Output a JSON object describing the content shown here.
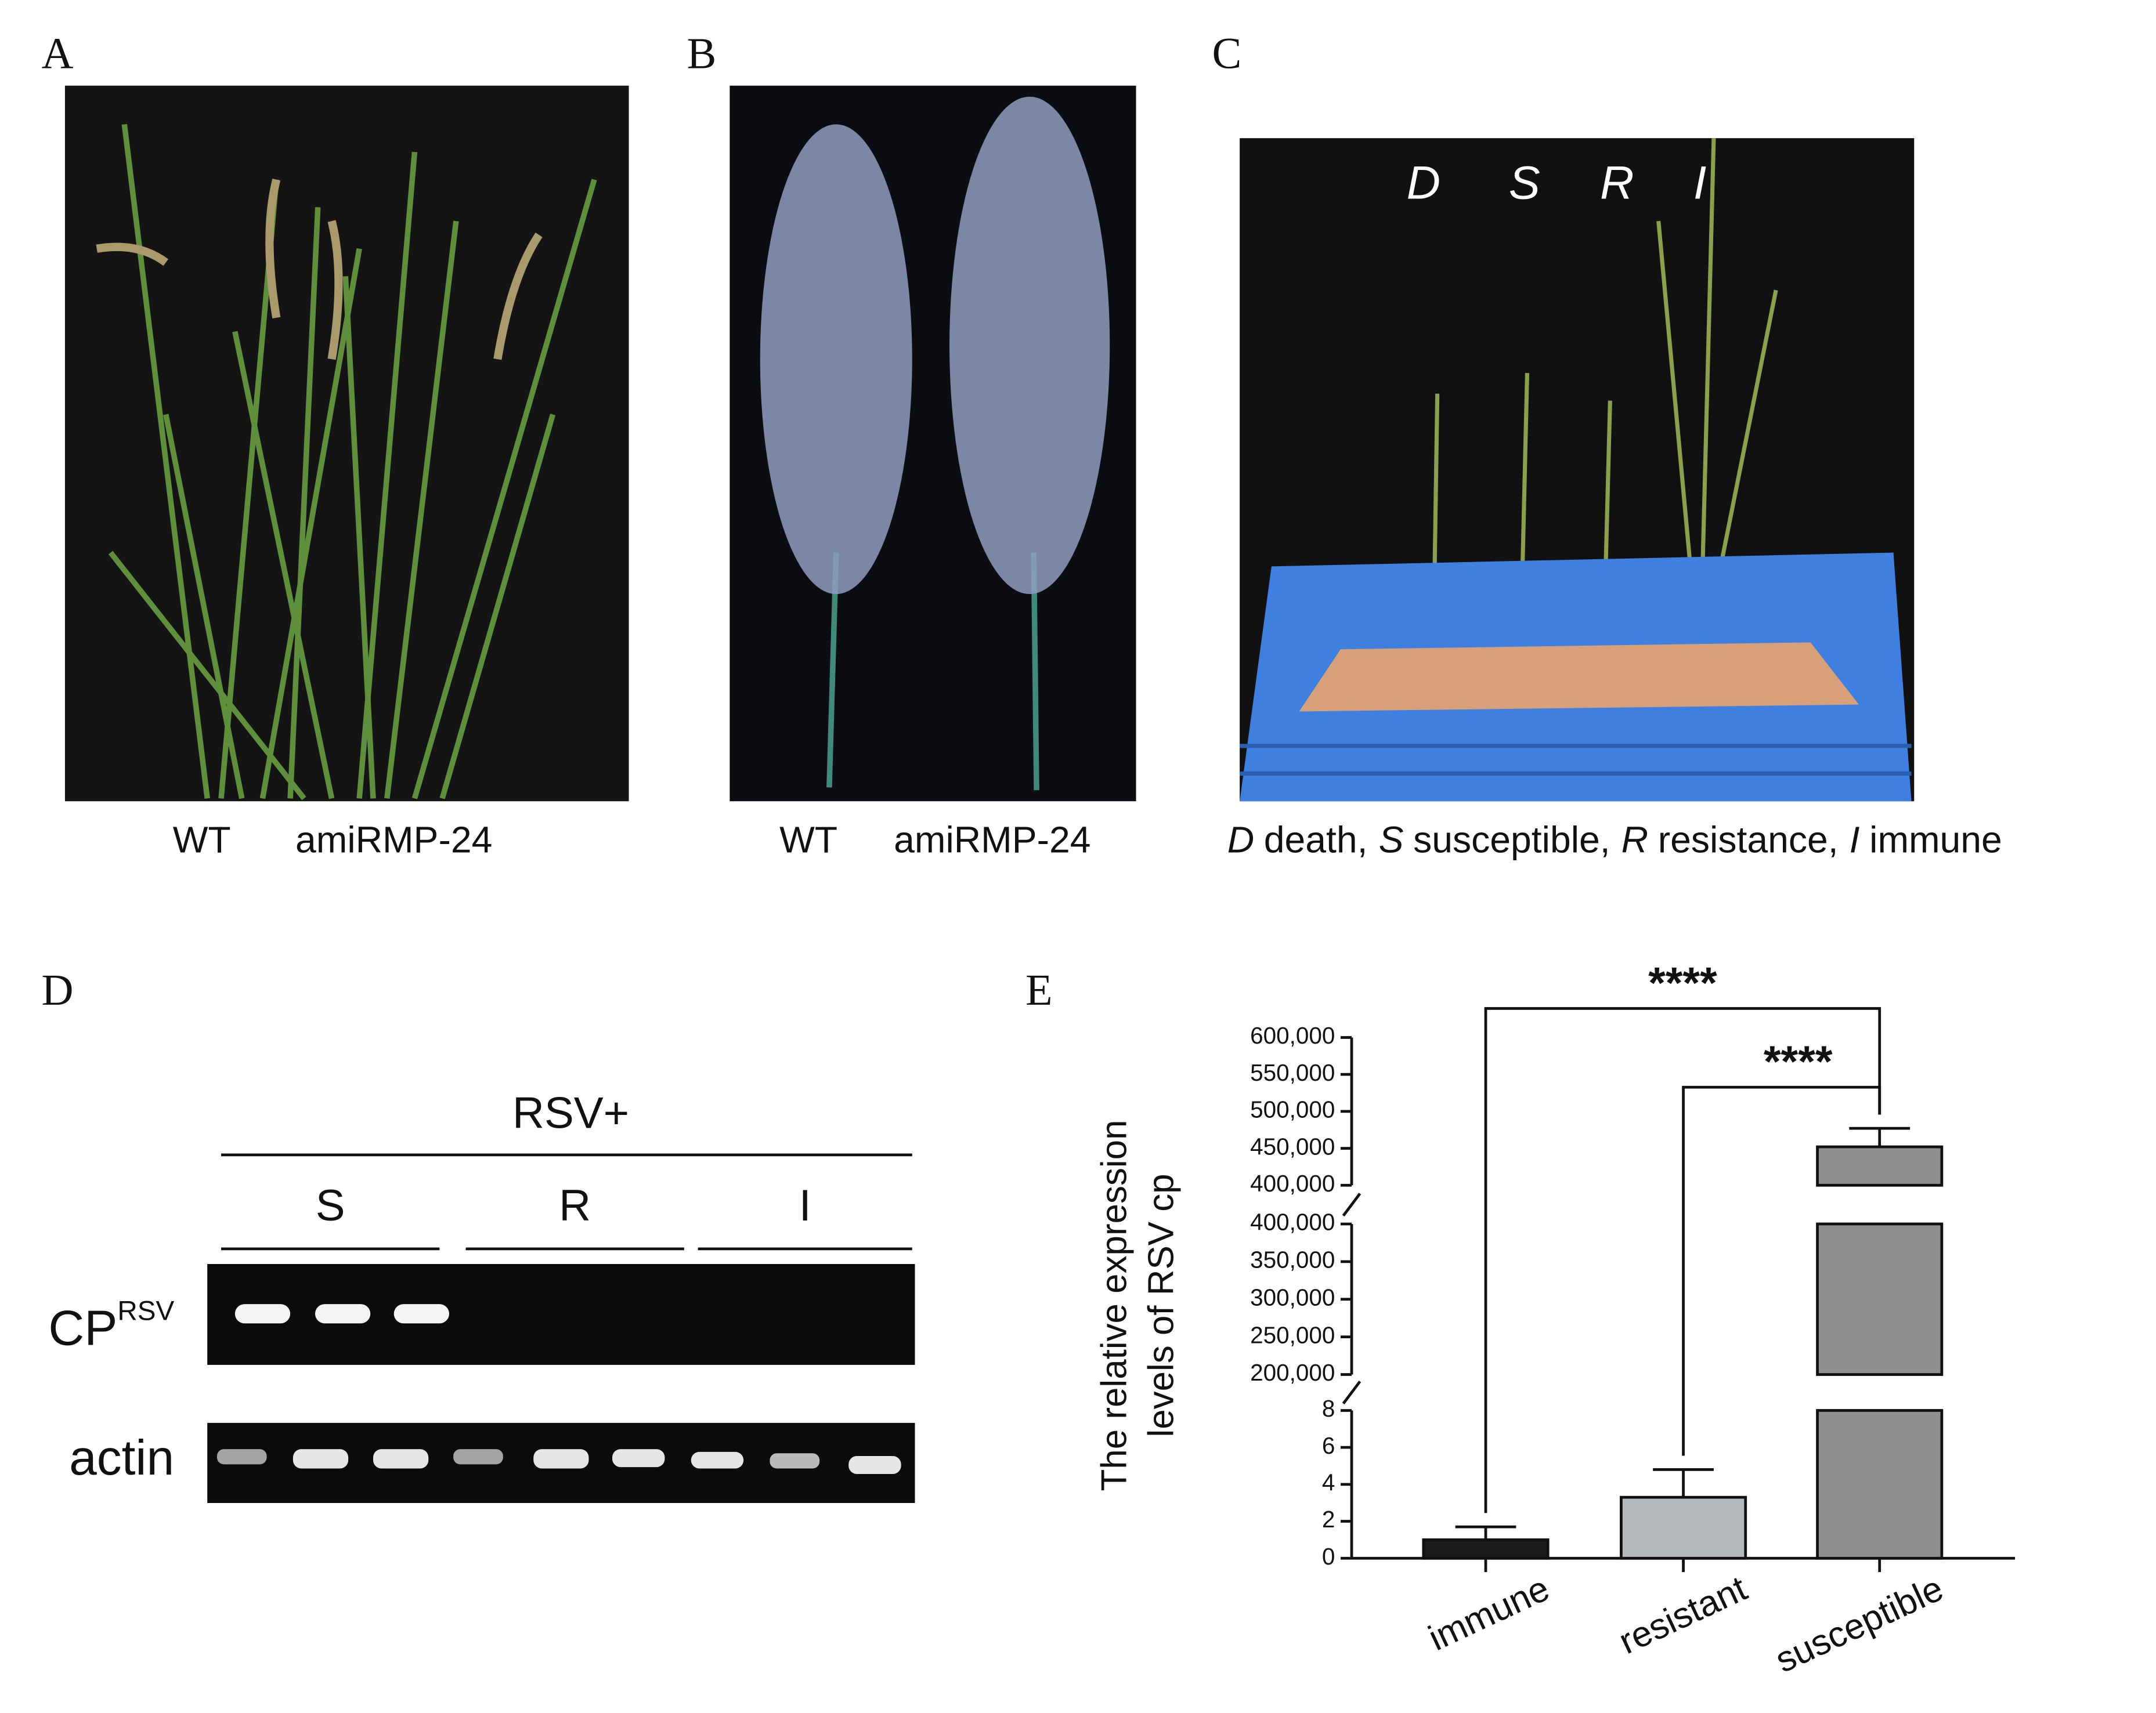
{
  "panels": {
    "a": {
      "label": "A",
      "captions": [
        "WT",
        "amiRMP-24"
      ]
    },
    "b": {
      "label": "B",
      "captions": [
        "WT",
        "amiRMP-24"
      ]
    },
    "c": {
      "label": "C",
      "photo_labels": [
        "D",
        "S",
        "R",
        "I"
      ],
      "caption": [
        {
          "term": "D",
          "meaning": "death,"
        },
        {
          "term": "S",
          "meaning": "susceptible,"
        },
        {
          "term": "R",
          "meaning": "resistance,"
        },
        {
          "term": "I",
          "meaning": "immune"
        }
      ]
    },
    "d": {
      "label": "D",
      "group": "RSV+",
      "lanes": [
        "S",
        "R",
        "I"
      ],
      "rows": [
        {
          "name": "CP",
          "sup": "RSV"
        },
        {
          "name": "actin"
        }
      ]
    }
  },
  "chart_data": {
    "type": "bar",
    "panel_label": "E",
    "ylabel": [
      "The relative expression",
      "levels of RSV cp"
    ],
    "categories": [
      "immune",
      "resistant",
      "susceptible"
    ],
    "values": [
      1,
      3.3,
      452000
    ],
    "errors": [
      0.7,
      1.5,
      25000
    ],
    "colors": [
      "#1a1a1a",
      "#b5b9be",
      "#8f8f8f"
    ],
    "segments": [
      {
        "ylim": [
          0,
          8
        ],
        "yticks": [
          0,
          2,
          4,
          6,
          8
        ]
      },
      {
        "ylim": [
          200000,
          400000
        ],
        "yticks": [
          {
            "value": 200000,
            "label": "200,000"
          },
          {
            "value": 250000,
            "label": "250,000"
          },
          {
            "value": 300000,
            "label": "300,000"
          },
          {
            "value": 350000,
            "label": "350,000"
          },
          {
            "value": 400000,
            "label": "400,000"
          }
        ]
      },
      {
        "ylim": [
          400000,
          600000
        ],
        "yticks": [
          {
            "value": 400000,
            "label": "400,000"
          },
          {
            "value": 450000,
            "label": "450,000"
          },
          {
            "value": 500000,
            "label": "500,000"
          },
          {
            "value": 550000,
            "label": "550,000"
          },
          {
            "value": 600000,
            "label": "600,000"
          }
        ]
      }
    ],
    "significance": [
      {
        "label": "****",
        "categories": [
          "immune",
          "susceptible"
        ]
      },
      {
        "label": "****",
        "categories": [
          "resistant",
          "susceptible"
        ]
      }
    ]
  }
}
